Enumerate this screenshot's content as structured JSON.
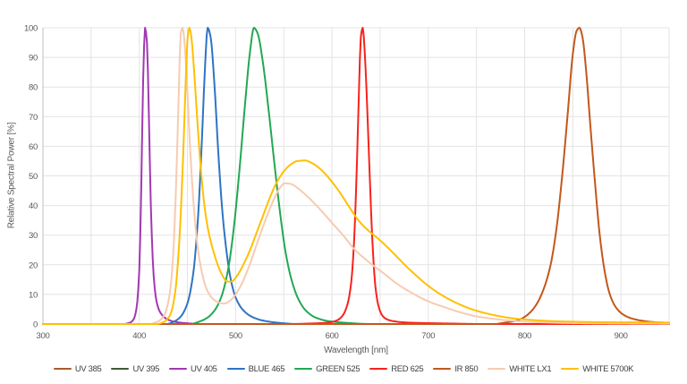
{
  "chart_data": {
    "type": "line",
    "title": "",
    "xlabel": "Wavelength [nm]",
    "ylabel": "Relative Spectral Power [%]",
    "xlim": [
      300,
      950
    ],
    "ylim": [
      0,
      100
    ],
    "x_ticks": [
      300,
      400,
      500,
      600,
      700,
      800,
      900
    ],
    "x_gridlines": [
      350,
      400,
      450,
      500,
      550,
      600,
      650,
      700,
      750,
      800,
      850,
      900,
      950
    ],
    "y_ticks": [
      0,
      10,
      20,
      30,
      40,
      50,
      60,
      70,
      80,
      90,
      100
    ],
    "grid": true,
    "legend_position": "bottom",
    "grid_color": "#E3E3E3",
    "axis_color": "#BFBFBF",
    "text_color": "#595959",
    "series": [
      {
        "name": "UV 385",
        "color": "#A85B2B",
        "points": [
          [
            300,
            0
          ],
          [
            950,
            0
          ]
        ]
      },
      {
        "name": "UV 395",
        "color": "#3E5B35",
        "points": [
          [
            300,
            0
          ],
          [
            950,
            0
          ]
        ]
      },
      {
        "name": "UV 405",
        "color": "#A238B2",
        "points": [
          [
            300,
            0
          ],
          [
            383,
            0
          ],
          [
            390,
            0.4
          ],
          [
            394,
            1.5
          ],
          [
            397,
            5
          ],
          [
            400,
            18
          ],
          [
            402,
            45
          ],
          [
            404,
            82
          ],
          [
            406,
            100
          ],
          [
            408,
            95
          ],
          [
            410,
            70
          ],
          [
            412,
            40
          ],
          [
            415,
            16
          ],
          [
            418,
            7.5
          ],
          [
            422,
            3.8
          ],
          [
            428,
            1.8
          ],
          [
            436,
            0.8
          ],
          [
            448,
            0.3
          ],
          [
            465,
            0
          ],
          [
            950,
            0
          ]
        ]
      },
      {
        "name": "BLUE 465",
        "color": "#2E74C4",
        "points": [
          [
            300,
            0
          ],
          [
            428,
            0
          ],
          [
            436,
            0.8
          ],
          [
            443,
            2.5
          ],
          [
            450,
            7
          ],
          [
            456,
            17
          ],
          [
            461,
            36
          ],
          [
            465,
            62
          ],
          [
            468,
            85
          ],
          [
            471,
            100
          ],
          [
            474,
            97
          ],
          [
            478,
            81
          ],
          [
            482,
            58
          ],
          [
            486,
            39
          ],
          [
            490,
            26
          ],
          [
            495,
            15
          ],
          [
            500,
            9
          ],
          [
            507,
            5
          ],
          [
            516,
            2.6
          ],
          [
            528,
            1.2
          ],
          [
            545,
            0.4
          ],
          [
            565,
            0
          ],
          [
            950,
            0
          ]
        ]
      },
      {
        "name": "GREEN 525",
        "color": "#22A854",
        "points": [
          [
            300,
            0
          ],
          [
            453,
            0
          ],
          [
            463,
            0.9
          ],
          [
            471,
            2.2
          ],
          [
            478,
            4.5
          ],
          [
            485,
            9
          ],
          [
            492,
            18
          ],
          [
            498,
            32
          ],
          [
            504,
            52
          ],
          [
            510,
            75
          ],
          [
            515,
            92
          ],
          [
            519,
            100
          ],
          [
            523,
            98
          ],
          [
            528,
            89
          ],
          [
            534,
            73
          ],
          [
            540,
            55
          ],
          [
            546,
            38
          ],
          [
            552,
            24
          ],
          [
            558,
            15
          ],
          [
            565,
            8.5
          ],
          [
            573,
            4.5
          ],
          [
            583,
            2.2
          ],
          [
            596,
            1
          ],
          [
            615,
            0.4
          ],
          [
            640,
            0
          ],
          [
            950,
            0
          ]
        ]
      },
      {
        "name": "RED 625",
        "color": "#F8221B",
        "points": [
          [
            300,
            0
          ],
          [
            555,
            0
          ],
          [
            580,
            0.2
          ],
          [
            597,
            0.5
          ],
          [
            605,
            1.2
          ],
          [
            611,
            2.8
          ],
          [
            616,
            6.5
          ],
          [
            620,
            14
          ],
          [
            623,
            28
          ],
          [
            626,
            55
          ],
          [
            628,
            78
          ],
          [
            630,
            97
          ],
          [
            632,
            100
          ],
          [
            634,
            92
          ],
          [
            636,
            78
          ],
          [
            639,
            52
          ],
          [
            642,
            28
          ],
          [
            645,
            13
          ],
          [
            648,
            6.5
          ],
          [
            652,
            3
          ],
          [
            657,
            1.6
          ],
          [
            665,
            0.9
          ],
          [
            678,
            0.5
          ],
          [
            700,
            0.3
          ],
          [
            725,
            0.15
          ],
          [
            755,
            0
          ],
          [
            950,
            0
          ]
        ]
      },
      {
        "name": "IR 850",
        "color": "#C4571B",
        "points": [
          [
            300,
            0
          ],
          [
            768,
            0
          ],
          [
            780,
            0.5
          ],
          [
            790,
            1
          ],
          [
            798,
            2
          ],
          [
            806,
            4
          ],
          [
            813,
            7
          ],
          [
            820,
            12
          ],
          [
            827,
            20
          ],
          [
            833,
            32
          ],
          [
            839,
            50
          ],
          [
            845,
            72
          ],
          [
            850,
            91
          ],
          [
            854,
            99
          ],
          [
            857,
            100
          ],
          [
            860,
            97
          ],
          [
            864,
            85
          ],
          [
            868,
            68
          ],
          [
            873,
            48
          ],
          [
            878,
            30
          ],
          [
            883,
            18
          ],
          [
            888,
            10.5
          ],
          [
            894,
            6
          ],
          [
            901,
            3.5
          ],
          [
            910,
            2
          ],
          [
            922,
            1.1
          ],
          [
            936,
            0.6
          ],
          [
            950,
            0.4
          ]
        ]
      },
      {
        "name": "WHITE LX1",
        "color": "#F7CBB0",
        "points": [
          [
            300,
            0
          ],
          [
            410,
            0
          ],
          [
            419,
            0.8
          ],
          [
            426,
            3
          ],
          [
            431,
            9
          ],
          [
            435,
            22
          ],
          [
            438,
            45
          ],
          [
            441,
            78
          ],
          [
            443,
            98
          ],
          [
            445,
            100
          ],
          [
            447,
            95
          ],
          [
            450,
            78
          ],
          [
            453,
            58
          ],
          [
            457,
            38
          ],
          [
            461,
            25
          ],
          [
            466,
            16
          ],
          [
            471,
            11
          ],
          [
            477,
            8.3
          ],
          [
            483,
            7.2
          ],
          [
            488,
            6.9
          ],
          [
            494,
            7.8
          ],
          [
            500,
            10
          ],
          [
            507,
            14
          ],
          [
            514,
            19.5
          ],
          [
            521,
            26
          ],
          [
            528,
            32.5
          ],
          [
            535,
            38.5
          ],
          [
            541,
            43
          ],
          [
            546,
            46
          ],
          [
            551,
            47.5
          ],
          [
            557,
            47.3
          ],
          [
            564,
            46
          ],
          [
            572,
            43.8
          ],
          [
            581,
            41
          ],
          [
            591,
            37.5
          ],
          [
            601,
            33.8
          ],
          [
            612,
            29.8
          ],
          [
            624,
            25
          ],
          [
            635,
            21.8
          ],
          [
            645,
            19.2
          ],
          [
            655,
            16.8
          ],
          [
            665,
            14.2
          ],
          [
            675,
            12
          ],
          [
            685,
            10.1
          ],
          [
            695,
            8.4
          ],
          [
            705,
            7
          ],
          [
            715,
            5.9
          ],
          [
            725,
            4.8
          ],
          [
            737,
            3.6
          ],
          [
            750,
            2.6
          ],
          [
            764,
            1.9
          ],
          [
            780,
            1.3
          ],
          [
            800,
            0.8
          ],
          [
            825,
            0.5
          ],
          [
            855,
            0.3
          ],
          [
            890,
            0.2
          ],
          [
            950,
            0.12
          ]
        ]
      },
      {
        "name": "WHITE 5700K",
        "color": "#FFC000",
        "points": [
          [
            300,
            0
          ],
          [
            418,
            0
          ],
          [
            426,
            0.8
          ],
          [
            432,
            3
          ],
          [
            437,
            10
          ],
          [
            441,
            25
          ],
          [
            445,
            52
          ],
          [
            448,
            80
          ],
          [
            450,
            96
          ],
          [
            452,
            100
          ],
          [
            454,
            97
          ],
          [
            457,
            85
          ],
          [
            460,
            70
          ],
          [
            464,
            52
          ],
          [
            468,
            39
          ],
          [
            472,
            31
          ],
          [
            477,
            24.5
          ],
          [
            482,
            19.5
          ],
          [
            487,
            16
          ],
          [
            491,
            14.3
          ],
          [
            496,
            14.4
          ],
          [
            502,
            16.5
          ],
          [
            508,
            20
          ],
          [
            515,
            25
          ],
          [
            522,
            31
          ],
          [
            529,
            37
          ],
          [
            536,
            43
          ],
          [
            543,
            48
          ],
          [
            550,
            51.5
          ],
          [
            557,
            53.8
          ],
          [
            564,
            55
          ],
          [
            572,
            55.2
          ],
          [
            580,
            54.2
          ],
          [
            589,
            52
          ],
          [
            598,
            48.8
          ],
          [
            608,
            44.5
          ],
          [
            618,
            39.5
          ],
          [
            628,
            34.8
          ],
          [
            638,
            31.5
          ],
          [
            648,
            28.8
          ],
          [
            658,
            25.8
          ],
          [
            668,
            22.5
          ],
          [
            678,
            19.2
          ],
          [
            688,
            16.2
          ],
          [
            698,
            13.4
          ],
          [
            708,
            11
          ],
          [
            718,
            9
          ],
          [
            728,
            7.3
          ],
          [
            740,
            5.6
          ],
          [
            752,
            4.3
          ],
          [
            764,
            3.3
          ],
          [
            778,
            2.4
          ],
          [
            794,
            1.7
          ],
          [
            810,
            1.3
          ],
          [
            830,
            0.95
          ],
          [
            855,
            0.75
          ],
          [
            885,
            0.6
          ],
          [
            915,
            0.55
          ],
          [
            950,
            0.5
          ]
        ]
      }
    ]
  }
}
